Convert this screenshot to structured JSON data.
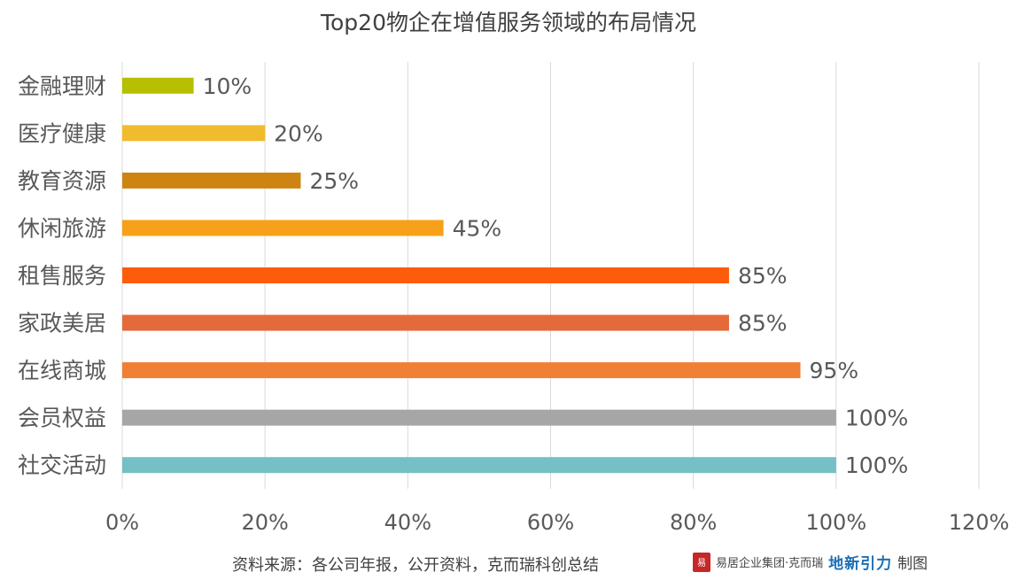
{
  "chart_data": {
    "type": "bar",
    "orientation": "horizontal",
    "title": "Top20物企在增值服务领域的布局情况",
    "categories": [
      "金融理财",
      "医疗健康",
      "教育资源",
      "休闲旅游",
      "租售服务",
      "家政美居",
      "在线商城",
      "会员权益",
      "社交活动"
    ],
    "values": [
      10,
      20,
      25,
      45,
      85,
      85,
      95,
      100,
      100
    ],
    "value_labels": [
      "10%",
      "20%",
      "25%",
      "45%",
      "85%",
      "85%",
      "95%",
      "100%",
      "100%"
    ],
    "bar_colors": [
      "#b6bf00",
      "#f0bb2c",
      "#cd8412",
      "#f7a11a",
      "#fe5c0d",
      "#e56a3b",
      "#f08035",
      "#a6a6a6",
      "#74c0c4"
    ],
    "xlim": [
      0,
      120
    ],
    "x_ticks": [
      0,
      20,
      40,
      60,
      80,
      100,
      120
    ],
    "x_tick_labels": [
      "0%",
      "20%",
      "40%",
      "60%",
      "80%",
      "100%",
      "120%"
    ],
    "grid": "vertical",
    "legend": "none",
    "colors": {
      "grid": "#d9d9d9",
      "text": "#595959",
      "title": "#404040"
    }
  },
  "footer": {
    "source": "资料来源：各公司年报，公开资料，克而瑞科创总结",
    "logo_seal": "易",
    "logo_text": "易居企业集团·克而瑞",
    "logo_dinxin": "地新引力",
    "suffix": "制图"
  }
}
